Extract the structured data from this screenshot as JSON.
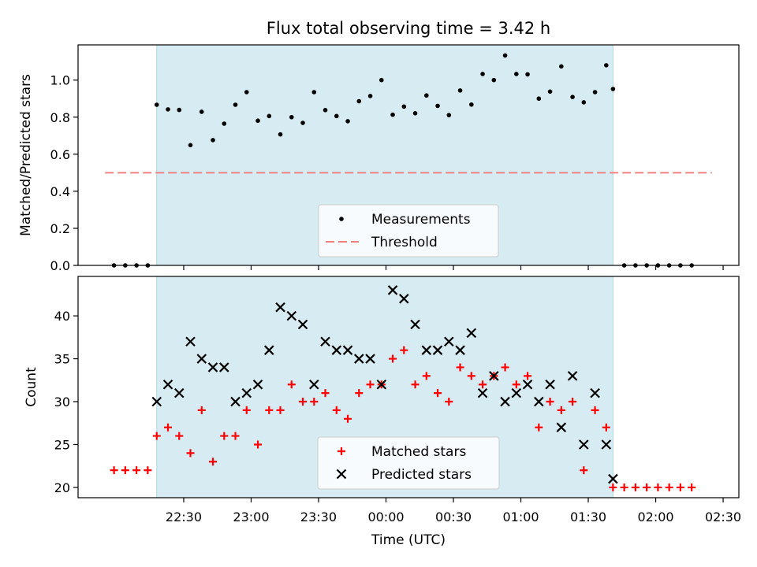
{
  "chart_data": [
    {
      "type": "scatter",
      "title": "Flux total observing time = 3.42 h",
      "xlabel": "",
      "ylabel": "Matched/Predicted stars",
      "ylim": [
        0,
        1.19
      ],
      "yticks": [
        0.0,
        0.2,
        0.4,
        0.6,
        0.8,
        1.0
      ],
      "ytick_labels": [
        "0.0",
        "0.2",
        "0.4",
        "0.6",
        "0.8",
        "1.0"
      ],
      "x_unit": "minutes after 22:00 UTC",
      "xlim": [
        -17,
        277
      ],
      "shaded_span": [
        18,
        221
      ],
      "threshold": {
        "value": 0.5,
        "x_range": [
          -5,
          265
        ],
        "color": "#f08080"
      },
      "legend": {
        "placement": "lower center",
        "entries": [
          "Measurements",
          "Threshold"
        ]
      },
      "series": [
        {
          "name": "Measurements",
          "marker": "dot",
          "color": "#000000",
          "x": [
            -1,
            4,
            9,
            14,
            18,
            23,
            28,
            33,
            38,
            43,
            48,
            53,
            58,
            63,
            68,
            73,
            78,
            83,
            88,
            93,
            98,
            103,
            108,
            113,
            118,
            123,
            128,
            133,
            138,
            143,
            148,
            153,
            158,
            163,
            168,
            173,
            178,
            183,
            188,
            193,
            198,
            203,
            208,
            213,
            218,
            221,
            226,
            231,
            236,
            241,
            246,
            251,
            256
          ],
          "y": [
            0,
            0,
            0,
            0,
            0.867,
            0.842,
            0.839,
            0.649,
            0.829,
            0.676,
            0.765,
            0.867,
            0.935,
            0.781,
            0.806,
            0.707,
            0.8,
            0.769,
            0.935,
            0.838,
            0.806,
            0.778,
            0.886,
            0.914,
            1.0,
            0.813,
            0.857,
            0.821,
            0.917,
            0.861,
            0.811,
            0.944,
            0.868,
            1.033,
            1.0,
            1.133,
            1.033,
            1.031,
            0.9,
            0.938,
            1.074,
            0.909,
            0.88,
            0.935,
            1.08,
            0.952,
            0,
            0,
            0,
            0,
            0,
            0,
            0
          ]
        }
      ]
    },
    {
      "type": "scatter",
      "title": "",
      "xlabel": "Time (UTC)",
      "ylabel": "Count",
      "ylim": [
        18.8,
        44.6
      ],
      "yticks": [
        20,
        25,
        30,
        35,
        40
      ],
      "ytick_labels": [
        "20",
        "25",
        "30",
        "35",
        "40"
      ],
      "x_unit": "minutes after 22:00 UTC",
      "xlim": [
        -17,
        277
      ],
      "xticks": [
        30,
        60,
        90,
        120,
        150,
        180,
        210,
        240,
        270
      ],
      "xtick_labels": [
        "22:30",
        "23:00",
        "23:30",
        "00:00",
        "00:30",
        "01:00",
        "01:30",
        "02:00",
        "02:30"
      ],
      "shaded_span": [
        18,
        221
      ],
      "legend": {
        "placement": "lower center",
        "entries": [
          "Matched stars",
          "Predicted stars"
        ]
      },
      "series": [
        {
          "name": "Matched stars",
          "marker": "plus",
          "color": "#ff0000",
          "x": [
            -1,
            4,
            9,
            14,
            18,
            23,
            28,
            33,
            38,
            43,
            48,
            53,
            58,
            63,
            68,
            73,
            78,
            83,
            88,
            93,
            98,
            103,
            108,
            113,
            118,
            123,
            128,
            133,
            138,
            143,
            148,
            153,
            158,
            163,
            168,
            173,
            178,
            183,
            188,
            193,
            198,
            203,
            208,
            213,
            218,
            221,
            226,
            231,
            236,
            241,
            246,
            251,
            256
          ],
          "y": [
            22,
            22,
            22,
            22,
            26,
            27,
            26,
            24,
            29,
            23,
            26,
            26,
            29,
            25,
            29,
            29,
            32,
            30,
            30,
            31,
            29,
            28,
            31,
            32,
            32,
            35,
            36,
            32,
            33,
            31,
            30,
            34,
            33,
            32,
            33,
            34,
            32,
            33,
            27,
            30,
            29,
            30,
            22,
            29,
            27,
            20,
            20,
            20,
            20,
            20,
            20,
            20,
            20
          ]
        },
        {
          "name": "Predicted stars",
          "marker": "x",
          "color": "#000000",
          "x": [
            18,
            23,
            28,
            33,
            38,
            43,
            48,
            53,
            58,
            63,
            68,
            73,
            78,
            83,
            88,
            93,
            98,
            103,
            108,
            113,
            118,
            123,
            128,
            133,
            138,
            143,
            148,
            153,
            158,
            163,
            168,
            173,
            178,
            183,
            188,
            193,
            198,
            203,
            208,
            213,
            218,
            221
          ],
          "y": [
            30,
            32,
            31,
            37,
            35,
            34,
            34,
            30,
            31,
            32,
            36,
            41,
            40,
            39,
            32,
            37,
            36,
            36,
            35,
            35,
            32,
            43,
            42,
            39,
            36,
            36,
            37,
            36,
            38,
            31,
            33,
            30,
            31,
            32,
            30,
            32,
            27,
            33,
            25,
            31,
            25,
            21
          ]
        }
      ]
    }
  ]
}
